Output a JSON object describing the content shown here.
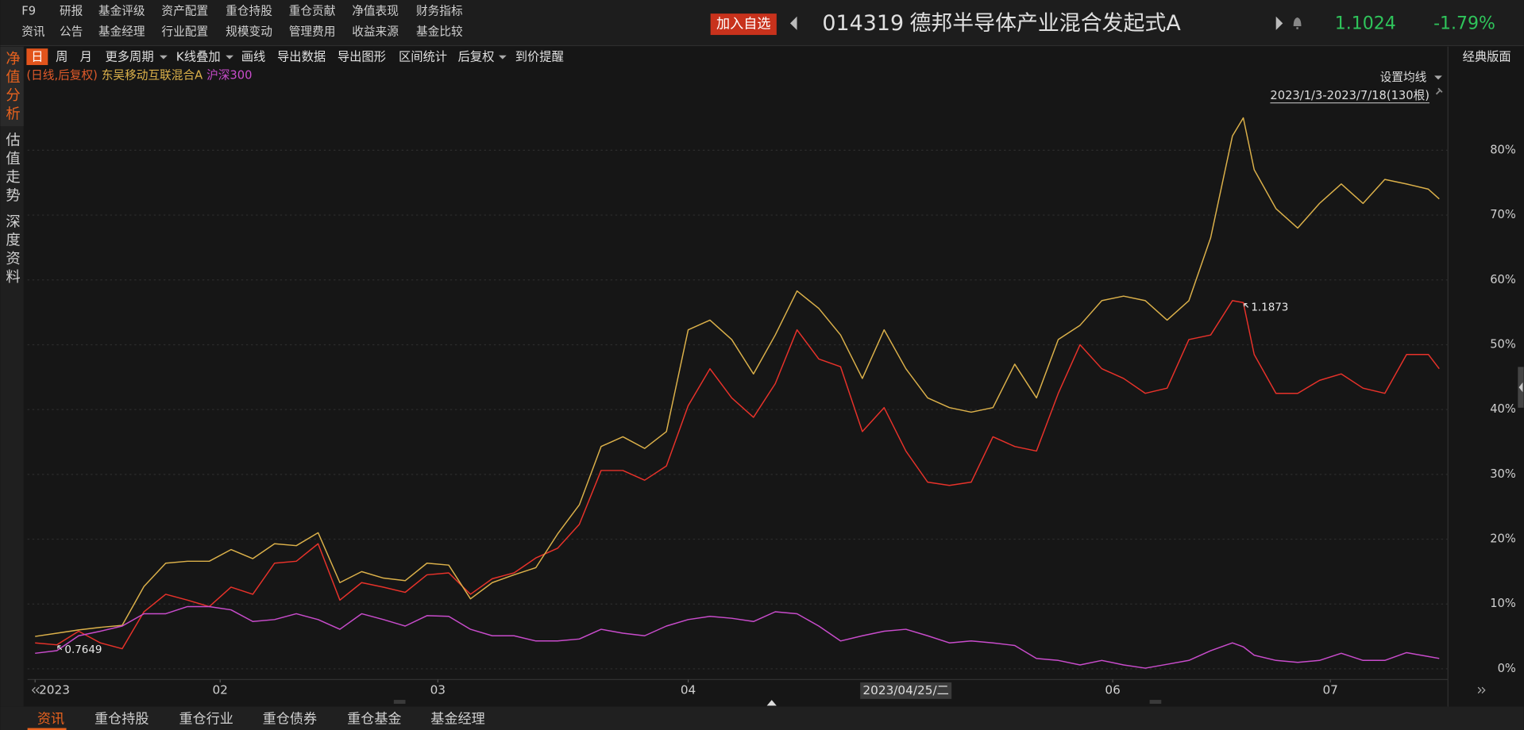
{
  "menu": {
    "rows": [
      [
        "F9",
        "研报",
        "基金评级",
        "资产配置",
        "重仓持股",
        "重仓贡献",
        "净值表现",
        "财务指标"
      ],
      [
        "资讯",
        "公告",
        "基金经理",
        "行业配置",
        "规模变动",
        "管理费用",
        "收益来源",
        "基金比较"
      ]
    ]
  },
  "header": {
    "add_button": "加入自选",
    "code": "014319",
    "name": "德邦半导体产业混合发起式A",
    "price": "1.1024",
    "change": "-1.79%"
  },
  "side_tabs": [
    "净值分析",
    "估值走势",
    "深度资料"
  ],
  "toolbar": {
    "items": [
      "日",
      "周",
      "月",
      "更多周期",
      "K线叠加",
      "画线",
      "导出数据",
      "导出图形",
      "区间统计",
      "后复权",
      "到价提醒"
    ],
    "layout_switch": "经典版面"
  },
  "chart_data": {
    "type": "line",
    "legend_prefix": "(日线,后复权)",
    "ma_setting": "设置均线",
    "range_label": "2023/1/3-2023/7/18(130根)",
    "x": [
      0,
      2,
      4,
      6,
      8,
      10,
      12,
      14,
      16,
      18,
      20,
      22,
      24,
      26,
      28,
      30,
      32,
      34,
      36,
      38,
      40,
      42,
      44,
      46,
      48,
      50,
      52,
      54,
      56,
      58,
      60,
      62,
      64,
      66,
      68,
      70,
      72,
      74,
      76,
      78,
      80,
      82,
      84,
      86,
      88,
      90,
      92,
      94,
      96,
      98,
      100,
      102,
      104,
      106,
      108,
      110,
      111,
      112,
      114,
      116,
      118,
      120,
      122,
      124,
      126,
      128,
      129
    ],
    "series": [
      {
        "color": "#e8322a",
        "values": [
          4,
          3.7,
          5.8,
          4,
          3.1,
          8.8,
          11.5,
          10.6,
          9.6,
          12.6,
          11.5,
          16.3,
          16.6,
          19.3,
          10.6,
          13.3,
          12.6,
          11.8,
          14.5,
          14.8,
          11.5,
          13.9,
          14.8,
          17.1,
          18.6,
          22.3,
          30.6,
          30.6,
          29.1,
          31.3,
          40.6,
          46.3,
          41.8,
          38.8,
          44,
          52.3,
          47.8,
          46.6,
          36.6,
          40.3,
          33.6,
          28.8,
          28.3,
          28.8,
          35.8,
          34.3,
          33.6,
          42.5,
          50,
          46.3,
          44.8,
          42.5,
          43.3,
          50.8,
          51.5,
          56.8,
          56.5,
          48.5,
          42.5,
          42.5,
          44.5,
          45.5,
          43.3,
          42.5,
          48.5,
          48.5,
          46.3
        ]
      },
      {
        "name": "东吴移动互联混合A",
        "color": "#dcb14a",
        "values": [
          5,
          5.5,
          6,
          6.4,
          6.7,
          12.7,
          16.3,
          16.6,
          16.6,
          18.4,
          17,
          19.3,
          19,
          21,
          13.3,
          15,
          14,
          13.6,
          16.3,
          16,
          10.8,
          13.3,
          14.5,
          15.6,
          20.8,
          25.3,
          34.3,
          35.8,
          34,
          36.6,
          52.3,
          53.8,
          50.8,
          45.5,
          51.5,
          58.3,
          55.6,
          51.5,
          44.8,
          52.3,
          46.3,
          41.8,
          40.3,
          39.6,
          40.3,
          47,
          41.8,
          50.8,
          53,
          56.8,
          57.5,
          56.8,
          53.8,
          56.8,
          66.5,
          82.2,
          85,
          77,
          71,
          68,
          71.8,
          74.8,
          71.8,
          75.5,
          74.8,
          74,
          72.5
        ]
      },
      {
        "name": "沪深300",
        "color": "#c94ccc",
        "values": [
          2.4,
          2.8,
          5.1,
          5.8,
          6.6,
          8.5,
          8.5,
          9.6,
          9.6,
          9.1,
          7.3,
          7.6,
          8.5,
          7.6,
          6.1,
          8.5,
          7.6,
          6.6,
          8.2,
          8.1,
          6.1,
          5.1,
          5.1,
          4.3,
          4.3,
          4.6,
          6.1,
          5.5,
          5.1,
          6.6,
          7.6,
          8.1,
          7.8,
          7.3,
          8.8,
          8.5,
          6.6,
          4.3,
          5.1,
          5.8,
          6.1,
          5.1,
          4.0,
          4.3,
          4.0,
          3.6,
          1.6,
          1.3,
          0.6,
          1.3,
          0.6,
          0.1,
          0.7,
          1.3,
          2.8,
          4.0,
          3.4,
          2.1,
          1.3,
          1.0,
          1.3,
          2.4,
          1.3,
          1.3,
          2.5,
          1.9,
          1.6
        ]
      }
    ],
    "xlim": [
      -0.7,
      129.8
    ],
    "xticks": [
      {
        "value": 0,
        "label": "2023"
      },
      {
        "value": 17,
        "label": "02"
      },
      {
        "value": 37,
        "label": "03"
      },
      {
        "value": 60,
        "label": "04"
      },
      {
        "value": 99,
        "label": "06"
      },
      {
        "value": 119,
        "label": "07"
      }
    ],
    "ylim": [
      -1.65,
      92.7
    ],
    "yticks": [
      {
        "value": 0,
        "label": "0%"
      },
      {
        "value": 10,
        "label": "10%"
      },
      {
        "value": 20,
        "label": "20%"
      },
      {
        "value": 30,
        "label": "30%"
      },
      {
        "value": 40,
        "label": "40%"
      },
      {
        "value": 50,
        "label": "50%"
      },
      {
        "value": 60,
        "label": "60%"
      },
      {
        "value": 70,
        "label": "70%"
      },
      {
        "value": 80,
        "label": "80%"
      }
    ],
    "grid": true,
    "annotations": [
      {
        "text": "0.7649",
        "x": 2,
        "series": 0
      },
      {
        "text": "1.1873",
        "x": 111,
        "series": 0
      }
    ],
    "crosshair_label": {
      "text": "2023/04/25/二",
      "x": 80
    }
  },
  "bottom_tabs": [
    "资讯",
    "重仓持股",
    "重仓行业",
    "重仓债券",
    "重仓基金",
    "基金经理"
  ]
}
